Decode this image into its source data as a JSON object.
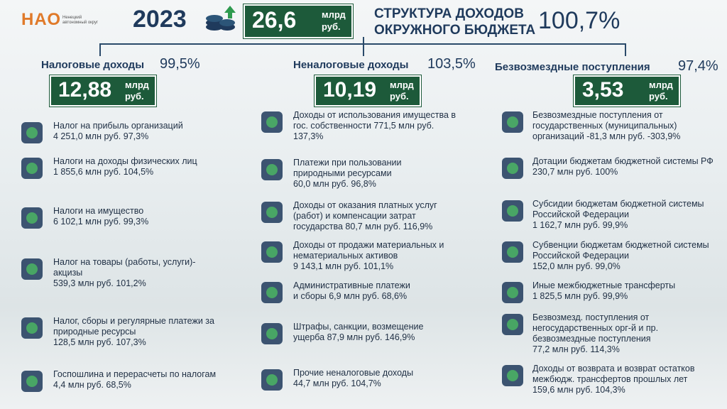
{
  "logo": {
    "mark": "НАО",
    "caption": "Ненецкий автономный округ"
  },
  "header": {
    "year": "2023",
    "total": "26,6",
    "unit_top": "млрд",
    "unit_bottom": "руб.",
    "title_lines": [
      "СТРУКТУРА ДОХОДОВ",
      "ОКРУЖНОГО БЮДЖЕТА"
    ],
    "percent": "100,7%"
  },
  "columns": [
    {
      "title": "Налоговые доходы",
      "percent": "99,5%",
      "value": "12,88",
      "unit_top": "млрд",
      "unit_bottom": "руб.",
      "items": [
        {
          "lines": [
            "Налог на прибыль организаций",
            "4 251,0 млн руб. 97,3%"
          ]
        },
        {
          "lines": [
            "Налоги на доходы физических лиц",
            "1 855,6 млн руб. 104,5%"
          ]
        },
        {
          "lines": [
            "Налоги на имущество",
            "6 102,1 млн руб. 99,3%"
          ]
        },
        {
          "lines": [
            "Налог на товары (работы, услуги)-",
            "акцизы",
            "539,3 млн руб. 101,2%"
          ]
        },
        {
          "lines": [
            "Налог, сборы и регулярные платежи за",
            "природные ресурсы",
            "128,5 млн руб. 107,3%"
          ]
        },
        {
          "lines": [
            "Госпошлина и перерасчеты по налогам",
            "4,4 млн руб. 68,5%"
          ]
        }
      ]
    },
    {
      "title": "Неналоговые доходы",
      "percent": "103,5%",
      "value": "10,19",
      "unit_top": "млрд",
      "unit_bottom": "руб.",
      "items": [
        {
          "lines": [
            "Доходы от использования имущества в",
            "гос. собственности 771,5 млн руб.",
            "137,3%"
          ]
        },
        {
          "lines": [
            "Платежи при пользовании",
            "природными ресурсами",
            "60,0 млн руб. 96,8%"
          ]
        },
        {
          "lines": [
            "Доходы от оказания платных услуг",
            "(работ) и компенсации затрат",
            "государства 80,7 млн руб. 116,9%"
          ]
        },
        {
          "lines": [
            "Доходы от продажи материальных и",
            "нематериальных активов",
            "9 143,1 млн руб. 101,1%"
          ]
        },
        {
          "lines": [
            "Административные платежи",
            "и сборы 6,9 млн руб. 68,6%"
          ]
        },
        {
          "lines": [
            "Штрафы, санкции, возмещение",
            "ущерба 87,9 млн руб. 146,9%"
          ]
        },
        {
          "lines": [
            "Прочие неналоговые доходы",
            "44,7 млн руб. 104,7%"
          ]
        }
      ]
    },
    {
      "title": "Безвозмездные поступления",
      "percent": "97,4%",
      "value": "3,53",
      "unit_top": "млрд",
      "unit_bottom": "руб.",
      "items": [
        {
          "lines": [
            "Безвозмездные поступления от",
            "государственных (муниципальных)",
            "организаций -81,3 млн руб. -303,9%"
          ]
        },
        {
          "lines": [
            "Дотации бюджетам бюджетной системы РФ",
            "230,7 млн руб. 100%"
          ]
        },
        {
          "lines": [
            "Субсидии бюджетам бюджетной системы",
            "Российской Федерации",
            "1 162,7 млн руб. 99,9%"
          ]
        },
        {
          "lines": [
            "Субвенции бюджетам бюджетной системы",
            "Российской Федерации",
            "152,0 млн руб. 99,0%"
          ]
        },
        {
          "lines": [
            "Иные межбюджетные трансферты",
            "1 825,5 млн руб. 99,9%"
          ]
        },
        {
          "lines": [
            "Безвозмезд. поступления от",
            "негосударственных орг-й и пр.",
            "безвозмездные поступления",
            "77,2 млн руб. 114,3%"
          ]
        },
        {
          "lines": [
            "Доходы от возврата и возврат остатков",
            "межбюдж. трансфертов прошлых лет",
            "159,6 млн руб. 104,3%"
          ]
        }
      ]
    }
  ]
}
